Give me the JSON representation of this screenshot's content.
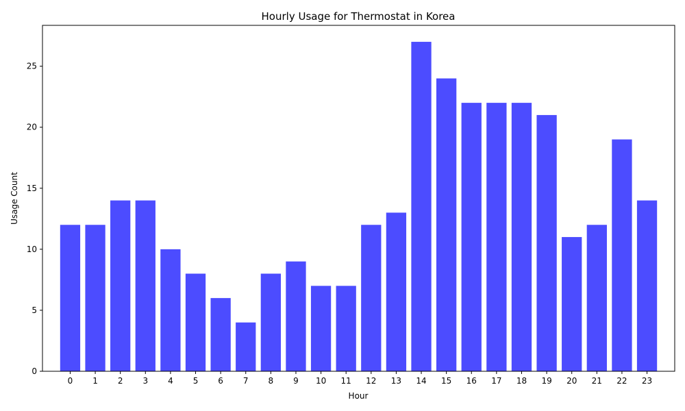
{
  "chart_data": {
    "type": "bar",
    "title": "Hourly Usage for Thermostat in Korea",
    "xlabel": "Hour",
    "ylabel": "Usage Count",
    "categories": [
      "0",
      "1",
      "2",
      "3",
      "4",
      "5",
      "6",
      "7",
      "8",
      "9",
      "10",
      "11",
      "12",
      "13",
      "14",
      "15",
      "16",
      "17",
      "18",
      "19",
      "20",
      "21",
      "22",
      "23"
    ],
    "values": [
      12,
      12,
      14,
      14,
      10,
      8,
      6,
      4,
      8,
      9,
      7,
      7,
      12,
      13,
      27,
      24,
      22,
      22,
      22,
      21,
      11,
      12,
      19,
      14
    ],
    "ylim": [
      0,
      28.35
    ],
    "yticks": [
      0,
      5,
      10,
      15,
      20,
      25
    ],
    "grid": false,
    "bar_color": "#4c4cff"
  }
}
